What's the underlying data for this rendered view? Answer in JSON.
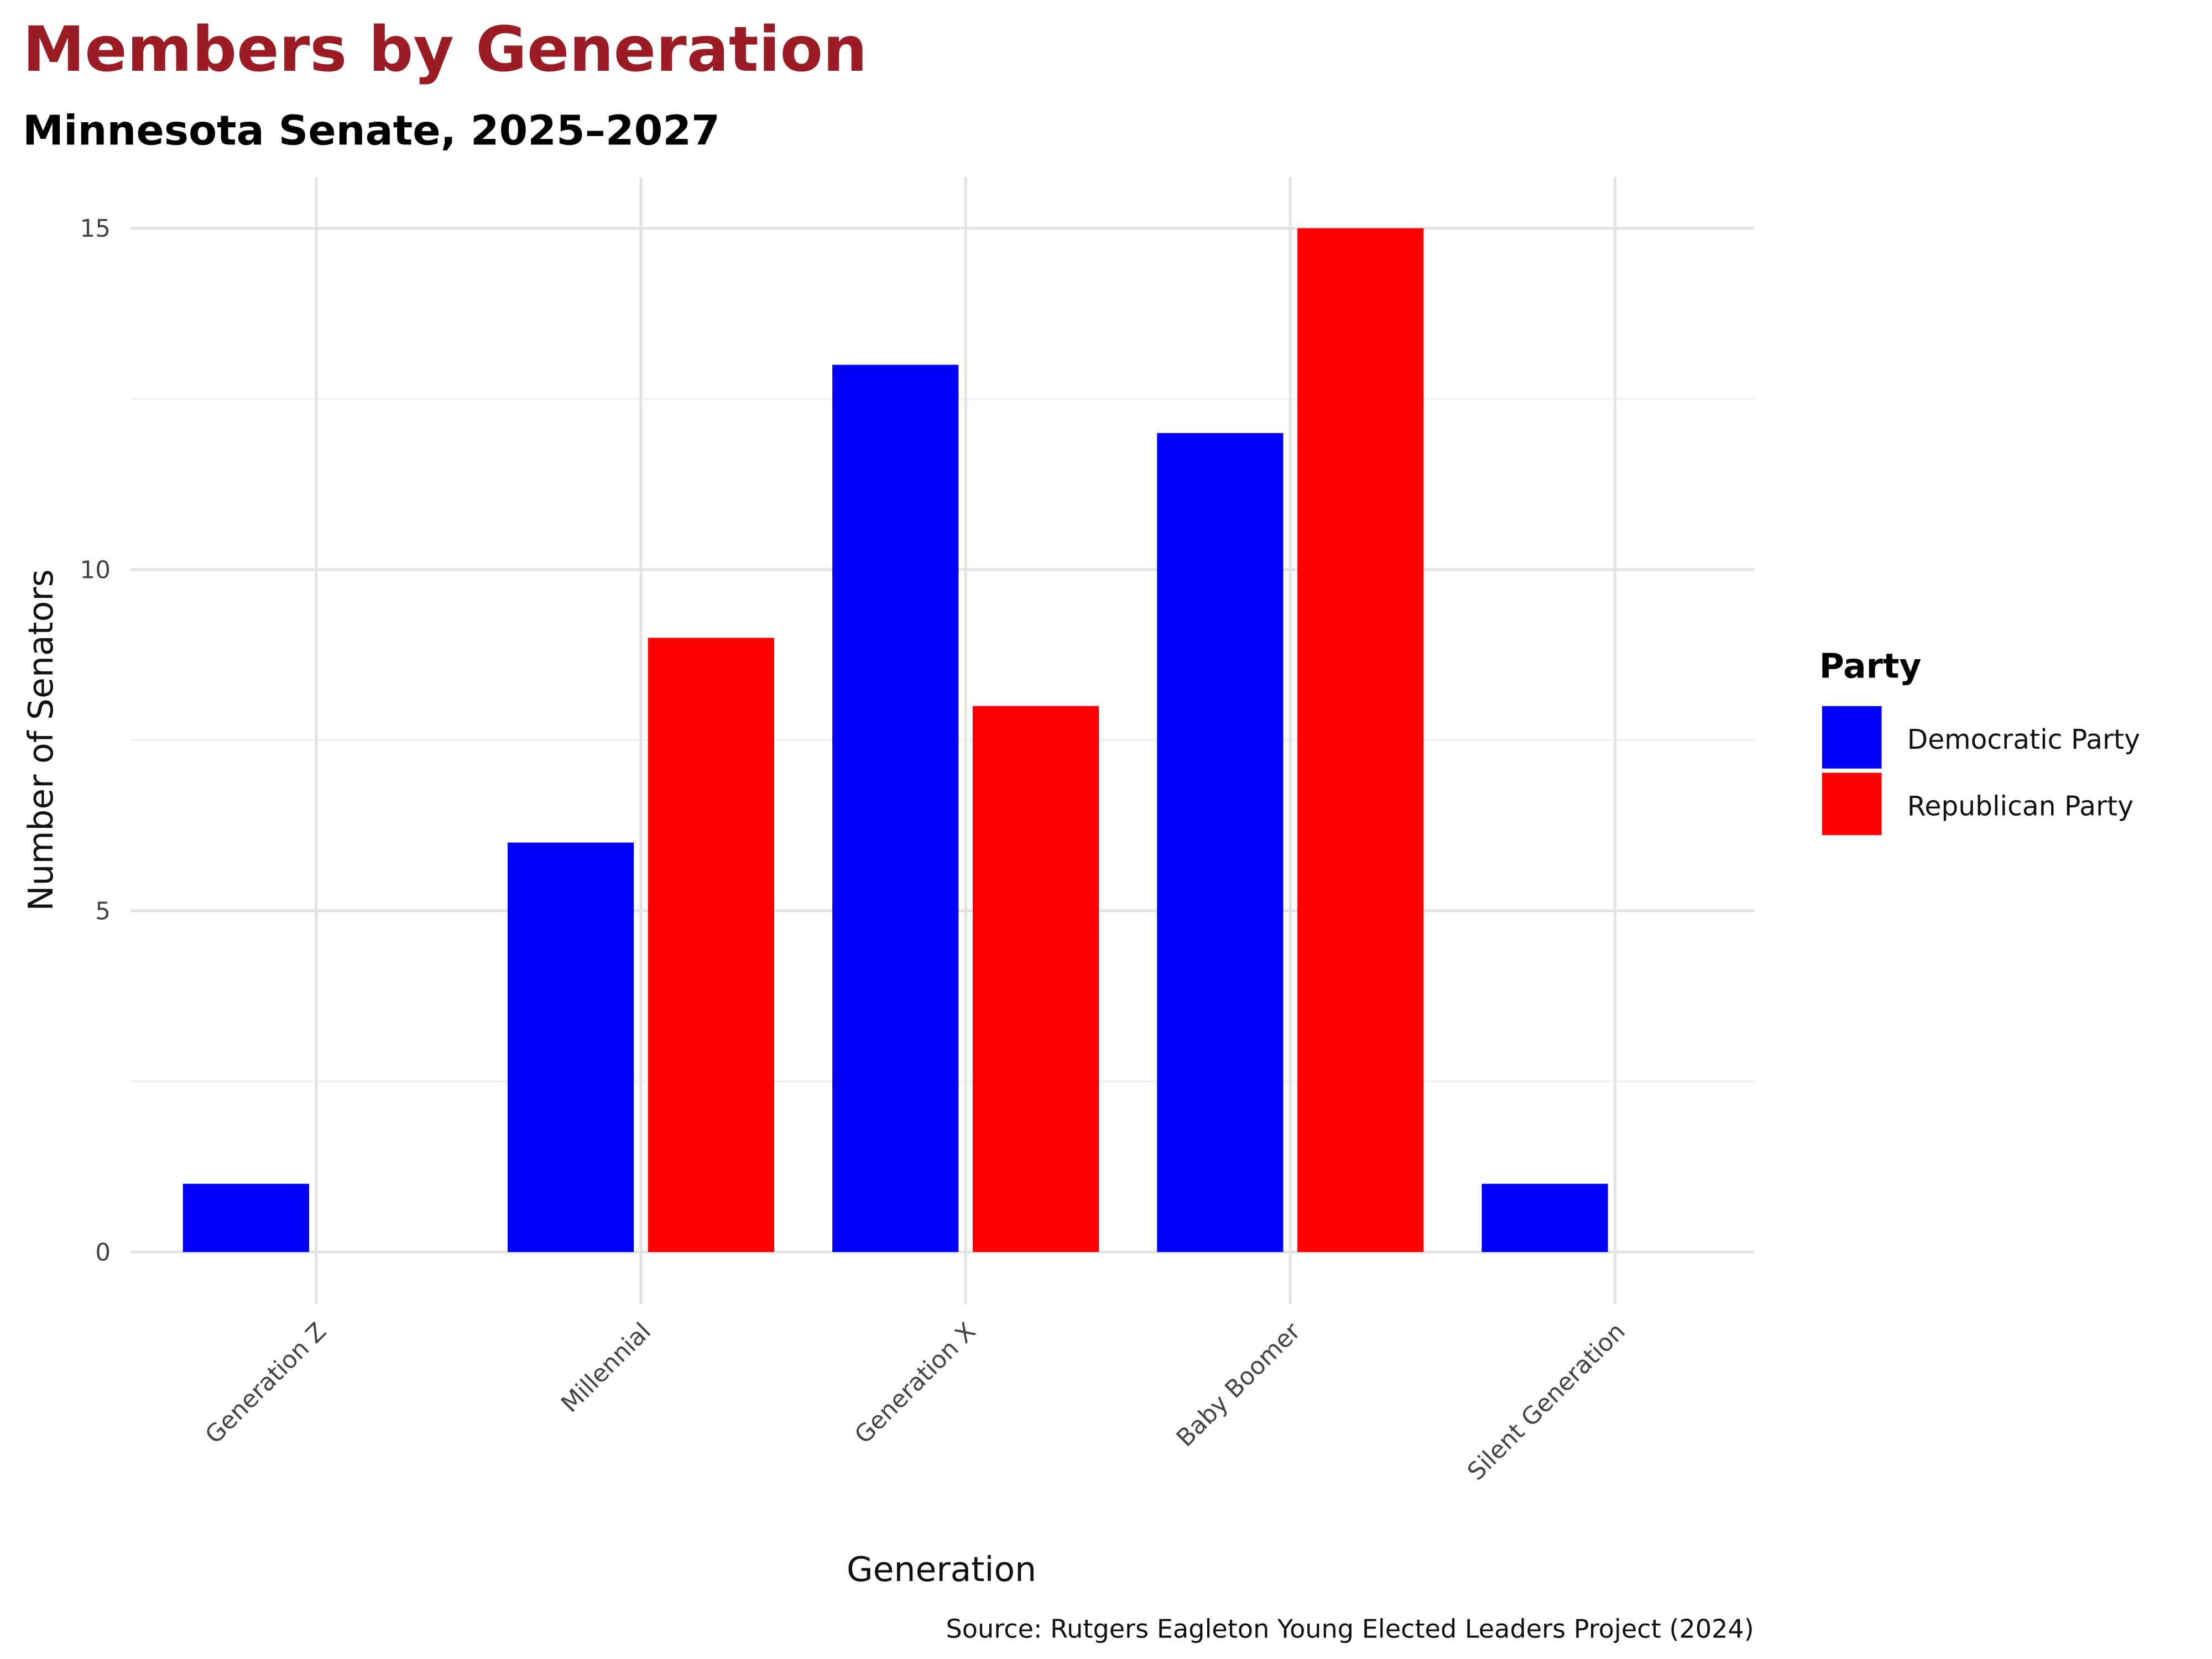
{
  "chart_data": {
    "type": "bar",
    "title": "Members by Generation",
    "subtitle": "Minnesota Senate, 2025–2027",
    "xlabel": "Generation",
    "ylabel": "Number of Senators",
    "caption": "Source: Rutgers Eagleton Young Elected Leaders Project (2024)",
    "categories": [
      "Generation Z",
      "Millennial",
      "Generation X",
      "Baby Boomer",
      "Silent Generation"
    ],
    "series": [
      {
        "name": "Democratic Party",
        "color": "#0000ff",
        "values": [
          1,
          6,
          13,
          12,
          1
        ]
      },
      {
        "name": "Republican Party",
        "color": "#ff0000",
        "values": [
          0,
          9,
          8,
          15,
          0
        ]
      }
    ],
    "ylim": [
      0,
      15.75
    ],
    "yticks": [
      "0",
      "5",
      "10",
      "15"
    ],
    "grid": true,
    "legend": {
      "title": "Party",
      "position": "right"
    },
    "title_color": "#9b1c24"
  }
}
